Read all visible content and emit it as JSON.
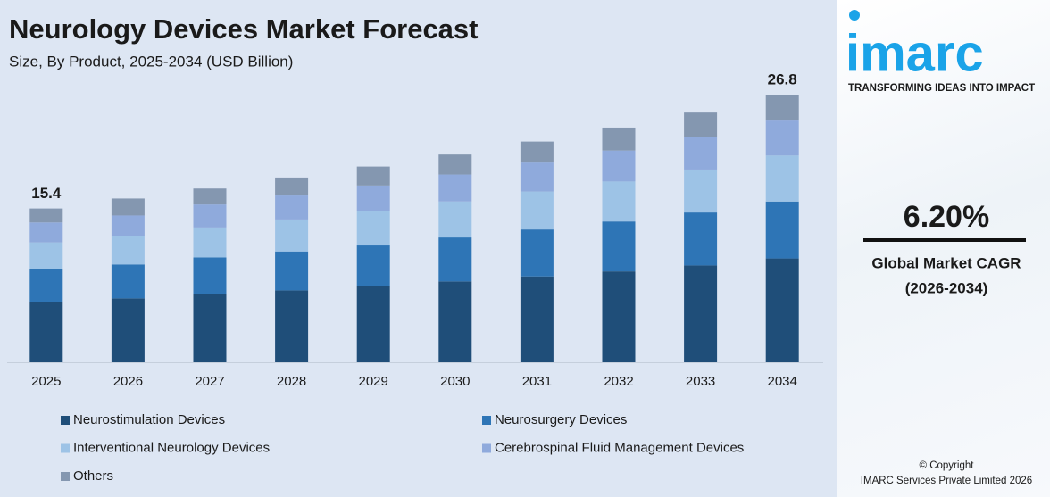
{
  "chart_data": {
    "type": "stacked_bar",
    "title": "Neurology Devices Market Forecast",
    "subtitle": "Size, By Product, 2025-2034 (USD Billion)",
    "categories": [
      "2025",
      "2026",
      "2027",
      "2028",
      "2029",
      "2030",
      "2031",
      "2032",
      "2033",
      "2034"
    ],
    "series": [
      {
        "name": "Neurostimulation Devices",
        "color": "#1f4e79",
        "values": [
          6.0,
          6.4,
          6.8,
          7.2,
          7.6,
          8.1,
          8.6,
          9.1,
          9.7,
          10.4
        ]
      },
      {
        "name": "Neurosurgery Devices",
        "color": "#2e75b6",
        "values": [
          3.3,
          3.4,
          3.7,
          3.9,
          4.1,
          4.4,
          4.7,
          5.0,
          5.3,
          5.7
        ]
      },
      {
        "name": "Interventional Neurology Devices",
        "color": "#9dc3e6",
        "values": [
          2.7,
          2.8,
          3.0,
          3.2,
          3.4,
          3.6,
          3.8,
          4.0,
          4.3,
          4.6
        ]
      },
      {
        "name": "Cerebrospinal Fluid Management Devices",
        "color": "#8faadc",
        "values": [
          2.0,
          2.1,
          2.3,
          2.4,
          2.6,
          2.7,
          2.9,
          3.1,
          3.3,
          3.5
        ]
      },
      {
        "name": "Others",
        "color": "#8497b0",
        "values": [
          1.4,
          1.7,
          1.6,
          1.8,
          1.9,
          2.0,
          2.1,
          2.3,
          2.4,
          2.6
        ]
      }
    ],
    "totals": [
      15.4,
      null,
      null,
      null,
      null,
      null,
      null,
      null,
      null,
      26.8
    ]
  },
  "sidebar": {
    "logo": "imarc",
    "tagline": "TRANSFORMING IDEAS INTO IMPACT",
    "cagr": "6.20%",
    "cagr_label": "Global Market CAGR",
    "cagr_period": "(2026-2034)",
    "copyright": "© Copyright",
    "company": "IMARC Services Private Limited 2026"
  }
}
